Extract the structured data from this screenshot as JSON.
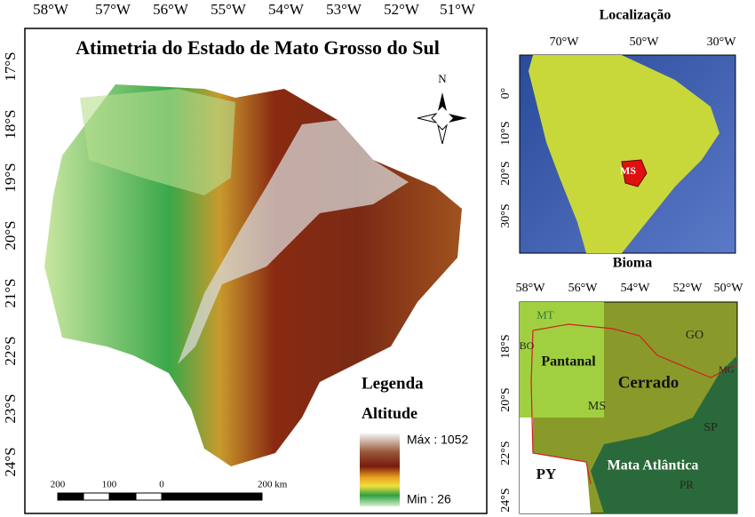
{
  "main_map": {
    "title": "Atimetria do Estado de Mato Grosso do Sul",
    "lon_labels": [
      "58°W",
      "57°W",
      "56°W",
      "55°W",
      "54°W",
      "53°W",
      "52°W",
      "51°W"
    ],
    "lat_labels": [
      "17°S",
      "18°S",
      "19°S",
      "20°S",
      "21°S",
      "22°S",
      "23°S",
      "24°S"
    ],
    "north": "N",
    "legend": {
      "title": "Legenda",
      "subtitle": "Altitude",
      "max": "Máx : 1052",
      "min": "Min : 26"
    },
    "scale_bar": [
      "200",
      "100",
      "0",
      "200 km"
    ]
  },
  "location_map": {
    "title": "Localização",
    "lon_labels": [
      "70°W",
      "50°W",
      "30°W"
    ],
    "lat_labels": [
      "0°",
      "10°S",
      "20°S",
      "30°S"
    ],
    "label": "MS"
  },
  "biome_map": {
    "title": "Bioma",
    "lon_labels": [
      "58°W",
      "56°W",
      "54°W",
      "52°W",
      "50°W"
    ],
    "lat_labels": [
      "18°S",
      "20°S",
      "22°S",
      "24°S"
    ],
    "labels": [
      "MT",
      "BO",
      "Pantanal",
      "Cerrado",
      "GO",
      "MG",
      "MS",
      "SP",
      "PY",
      "Mata Atlântica",
      "PR"
    ]
  }
}
